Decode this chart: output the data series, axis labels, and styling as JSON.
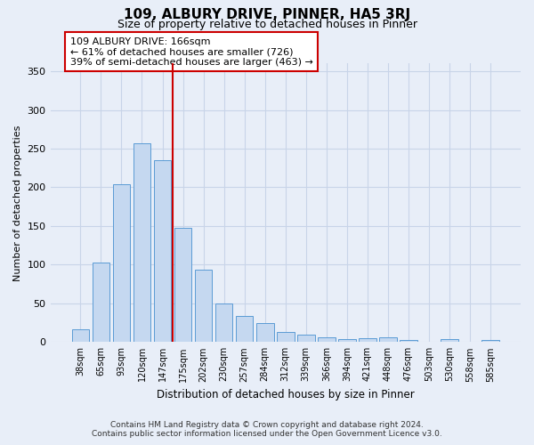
{
  "title": "109, ALBURY DRIVE, PINNER, HA5 3RJ",
  "subtitle": "Size of property relative to detached houses in Pinner",
  "xlabel": "Distribution of detached houses by size in Pinner",
  "ylabel": "Number of detached properties",
  "categories": [
    "38sqm",
    "65sqm",
    "93sqm",
    "120sqm",
    "147sqm",
    "175sqm",
    "202sqm",
    "230sqm",
    "257sqm",
    "284sqm",
    "312sqm",
    "339sqm",
    "366sqm",
    "394sqm",
    "421sqm",
    "448sqm",
    "476sqm",
    "503sqm",
    "530sqm",
    "558sqm",
    "585sqm"
  ],
  "values": [
    17,
    103,
    204,
    257,
    235,
    148,
    94,
    50,
    34,
    25,
    13,
    9,
    6,
    4,
    5,
    6,
    3,
    0,
    4,
    0,
    3
  ],
  "bar_color": "#c5d8f0",
  "bar_edge_color": "#5b9bd5",
  "grid_color": "#c8d4e8",
  "background_color": "#e8eef8",
  "vline_x": 4.5,
  "vline_color": "#cc0000",
  "annotation_text": "109 ALBURY DRIVE: 166sqm\n← 61% of detached houses are smaller (726)\n39% of semi-detached houses are larger (463) →",
  "annotation_box_color": "#ffffff",
  "annotation_box_edge": "#cc0000",
  "footer_line1": "Contains HM Land Registry data © Crown copyright and database right 2024.",
  "footer_line2": "Contains public sector information licensed under the Open Government Licence v3.0.",
  "ylim": [
    0,
    360
  ],
  "yticks": [
    0,
    50,
    100,
    150,
    200,
    250,
    300,
    350
  ]
}
